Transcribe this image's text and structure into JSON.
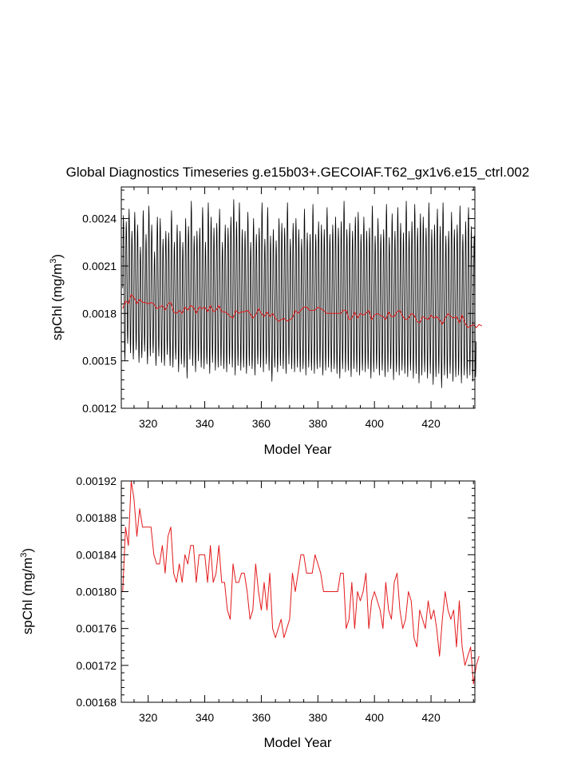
{
  "chart_data": [
    {
      "type": "line",
      "title": "Global Diagnostics Timeseries g.e15b03+.GECOIAF.T62_gx1v6.e15_ctrl.002",
      "xlabel": "Model Year",
      "ylabel": "spChl (mg/m",
      "ylabel_sup": "3",
      "ylabel_end": ")",
      "xlim": [
        310.5,
        435.5
      ],
      "ylim": [
        0.0012,
        0.0026
      ],
      "x_ticks": [
        320,
        340,
        360,
        380,
        400,
        420
      ],
      "x_tick_labels": [
        "320",
        "340",
        "360",
        "380",
        "400",
        "420"
      ],
      "y_ticks": [
        0.0012,
        0.0015,
        0.0018,
        0.0021,
        0.0024
      ],
      "y_tick_labels": [
        "0.0012",
        "0.0015",
        "0.0018",
        "0.0021",
        "0.0024"
      ],
      "series": [
        {
          "color": "#000000",
          "kind": "monthly",
          "start_year": 311,
          "end_year": 435,
          "annual_max": [
            0.00242,
            0.00238,
            0.00246,
            0.00232,
            0.00244,
            0.00236,
            0.00222,
            0.00245,
            0.0023,
            0.00248,
            0.00236,
            0.00219,
            0.00241,
            0.0024,
            0.00227,
            0.00232,
            0.00231,
            0.00245,
            0.00225,
            0.00236,
            0.00232,
            0.00225,
            0.0024,
            0.00235,
            0.00251,
            0.00229,
            0.00232,
            0.00234,
            0.00247,
            0.00225,
            0.0025,
            0.00241,
            0.00234,
            0.00237,
            0.00246,
            0.00225,
            0.00236,
            0.00234,
            0.00241,
            0.00252,
            0.00238,
            0.0025,
            0.00233,
            0.00232,
            0.00244,
            0.00225,
            0.0024,
            0.0023,
            0.00234,
            0.0025,
            0.00227,
            0.00247,
            0.00229,
            0.00233,
            0.00226,
            0.0024,
            0.00237,
            0.00234,
            0.0025,
            0.00227,
            0.00237,
            0.0024,
            0.00233,
            0.00227,
            0.00246,
            0.00231,
            0.0023,
            0.00249,
            0.0023,
            0.00238,
            0.00236,
            0.00233,
            0.00247,
            0.0023,
            0.00236,
            0.00241,
            0.00234,
            0.00238,
            0.00251,
            0.00233,
            0.00237,
            0.00232,
            0.00241,
            0.00244,
            0.0023,
            0.00241,
            0.00232,
            0.00234,
            0.00248,
            0.00229,
            0.0024,
            0.0023,
            0.00233,
            0.00249,
            0.00228,
            0.00243,
            0.00232,
            0.00247,
            0.00237,
            0.00231,
            0.00251,
            0.00232,
            0.00238,
            0.00249,
            0.00234,
            0.00243,
            0.00241,
            0.00234,
            0.0025,
            0.00233,
            0.00236,
            0.00246,
            0.00235,
            0.0025,
            0.00229,
            0.00232,
            0.00244,
            0.00233,
            0.00236,
            0.00248,
            0.0023,
            0.00238,
            0.00247,
            0.00235,
            0.00229
          ],
          "annual_min": [
            0.0015,
            0.00161,
            0.00155,
            0.00151,
            0.00157,
            0.00149,
            0.00152,
            0.00156,
            0.00148,
            0.00153,
            0.00155,
            0.00147,
            0.00153,
            0.00149,
            0.00147,
            0.00154,
            0.00147,
            0.00146,
            0.00151,
            0.00143,
            0.00148,
            0.00146,
            0.00139,
            0.00151,
            0.00147,
            0.00143,
            0.0015,
            0.00146,
            0.00145,
            0.00148,
            0.00142,
            0.00149,
            0.00144,
            0.00146,
            0.00147,
            0.00145,
            0.00143,
            0.00148,
            0.00146,
            0.00141,
            0.00147,
            0.00144,
            0.00146,
            0.00142,
            0.00147,
            0.00145,
            0.00141,
            0.00148,
            0.00146,
            0.00143,
            0.00148,
            0.00144,
            0.00137,
            0.00146,
            0.00143,
            0.00147,
            0.00145,
            0.00142,
            0.00148,
            0.00145,
            0.00143,
            0.00146,
            0.00143,
            0.00145,
            0.00141,
            0.00146,
            0.00144,
            0.00142,
            0.00145,
            0.00146,
            0.00141,
            0.00144,
            0.00146,
            0.00143,
            0.00145,
            0.00142,
            0.00139,
            0.00145,
            0.00143,
            0.00144,
            0.0014,
            0.00145,
            0.00143,
            0.00141,
            0.00144,
            0.00143,
            0.00145,
            0.00139,
            0.00143,
            0.00145,
            0.00141,
            0.00144,
            0.0014,
            0.00143,
            0.00145,
            0.00138,
            0.00143,
            0.00141,
            0.00144,
            0.00142,
            0.0014,
            0.00144,
            0.00139,
            0.00142,
            0.00136,
            0.00141,
            0.00143,
            0.00139,
            0.00142,
            0.00135,
            0.0014,
            0.00142,
            0.00133,
            0.00141,
            0.00139,
            0.00142,
            0.00137,
            0.0014,
            0.00141,
            0.00136,
            0.00141,
            0.00139,
            0.00141,
            0.00137,
            0.0014
          ]
        },
        {
          "color": "#e31a1c",
          "kind": "annual",
          "x_start": 311,
          "values": [
            0.00183,
            0.00188,
            0.00186,
            0.00192,
            0.0019,
            0.00186,
            0.00189,
            0.00187,
            0.00187,
            0.00186,
            0.00187,
            0.00186,
            0.00183,
            0.00184,
            0.00185,
            0.00182,
            0.00186,
            0.00187,
            0.00181,
            0.0018,
            0.00182,
            0.0018,
            0.00184,
            0.00182,
            0.00185,
            0.00184,
            0.0018,
            0.00184,
            0.00183,
            0.00184,
            0.00181,
            0.00185,
            0.00181,
            0.00182,
            0.00185,
            0.00181,
            0.00181,
            0.0018,
            0.00178,
            0.00177,
            0.00182,
            0.0018,
            0.00181,
            0.00181,
            0.00182,
            0.0018,
            0.00177,
            0.00179,
            0.00183,
            0.0018,
            0.00178,
            0.00181,
            0.00178,
            0.0018,
            0.00177,
            0.00175,
            0.00176,
            0.00177,
            0.00175,
            0.00176,
            0.00177,
            0.00182,
            0.0018,
            0.00182,
            0.00184,
            0.00184,
            0.00182,
            0.00182,
            0.00182,
            0.00184,
            0.00183,
            0.00182,
            0.0018,
            0.0018,
            0.0018,
            0.0018,
            0.0018,
            0.0018,
            0.00182,
            0.00182,
            0.00176,
            0.00177,
            0.00181,
            0.00177,
            0.0018,
            0.00179,
            0.0018,
            0.00182,
            0.00176,
            0.00179,
            0.0018,
            0.00179,
            0.00178,
            0.00176,
            0.00181,
            0.00178,
            0.00178,
            0.00181,
            0.00182,
            0.00178,
            0.00176,
            0.00177,
            0.0018,
            0.00179,
            0.00175,
            0.00174,
            0.00178,
            0.00177,
            0.00176,
            0.00179,
            0.00177,
            0.00178,
            0.00176,
            0.00173,
            0.00177,
            0.0018,
            0.00178,
            0.00177,
            0.00178,
            0.00174,
            0.00179,
            0.00174,
            0.00171,
            0.00172,
            0.00173,
            0.00171,
            0.00173,
            0.00172
          ]
        }
      ]
    },
    {
      "type": "line",
      "title": "",
      "xlabel": "Model Year",
      "ylabel": "spChl (mg/m",
      "ylabel_sup": "3",
      "ylabel_end": ")",
      "xlim": [
        310.5,
        435.5
      ],
      "ylim": [
        0.00168,
        0.00192
      ],
      "x_ticks": [
        320,
        340,
        360,
        380,
        400,
        420
      ],
      "x_tick_labels": [
        "320",
        "340",
        "360",
        "380",
        "400",
        "420"
      ],
      "y_ticks": [
        0.00168,
        0.00172,
        0.00176,
        0.0018,
        0.00184,
        0.00188,
        0.00192
      ],
      "y_tick_labels": [
        "0.00168",
        "0.00172",
        "0.00176",
        "0.00180",
        "0.00184",
        "0.00188",
        "0.00192"
      ],
      "series": [
        {
          "color": "#e31a1c",
          "kind": "annual",
          "x_start": 311,
          "values": [
            0.0018,
            0.00187,
            0.00185,
            0.00192,
            0.0019,
            0.00186,
            0.00189,
            0.00187,
            0.00187,
            0.00187,
            0.00187,
            0.00184,
            0.00183,
            0.00183,
            0.00185,
            0.00182,
            0.00186,
            0.00187,
            0.00182,
            0.00181,
            0.00183,
            0.00181,
            0.00184,
            0.00183,
            0.00185,
            0.00185,
            0.00181,
            0.00184,
            0.00184,
            0.00184,
            0.00181,
            0.00185,
            0.00181,
            0.00182,
            0.00185,
            0.00181,
            0.00181,
            0.00178,
            0.00177,
            0.00183,
            0.00181,
            0.00181,
            0.00182,
            0.00182,
            0.0018,
            0.00177,
            0.00178,
            0.00183,
            0.0018,
            0.00178,
            0.00181,
            0.00178,
            0.00182,
            0.00176,
            0.00175,
            0.00176,
            0.00177,
            0.00175,
            0.00176,
            0.00177,
            0.00182,
            0.0018,
            0.00182,
            0.00184,
            0.00184,
            0.00182,
            0.00182,
            0.00182,
            0.00184,
            0.00183,
            0.00182,
            0.0018,
            0.0018,
            0.0018,
            0.0018,
            0.0018,
            0.0018,
            0.00182,
            0.00182,
            0.00176,
            0.00177,
            0.00181,
            0.00176,
            0.0018,
            0.00179,
            0.0018,
            0.00182,
            0.00176,
            0.00179,
            0.0018,
            0.00179,
            0.00178,
            0.00176,
            0.00181,
            0.00178,
            0.00177,
            0.00181,
            0.00182,
            0.00178,
            0.00176,
            0.00177,
            0.0018,
            0.00179,
            0.00175,
            0.00174,
            0.00178,
            0.00177,
            0.00176,
            0.00179,
            0.00177,
            0.00178,
            0.00176,
            0.00173,
            0.00177,
            0.0018,
            0.00178,
            0.00177,
            0.00178,
            0.00174,
            0.00179,
            0.00174,
            0.00172,
            0.00173,
            0.00174,
            0.0017,
            0.00172,
            0.00173
          ]
        }
      ]
    }
  ]
}
